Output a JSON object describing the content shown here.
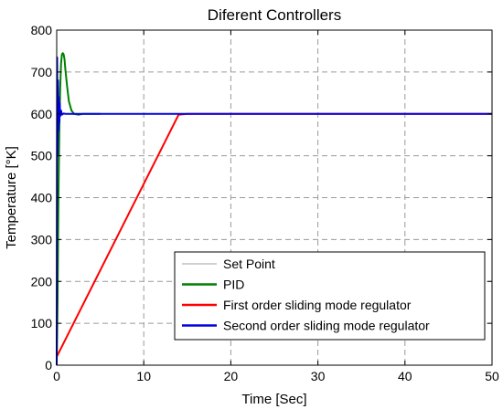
{
  "chart_data": {
    "type": "line",
    "title": "Diferent Controllers",
    "xlabel": "Time [Sec]",
    "ylabel": "Temperature [°K]",
    "xlim": [
      0,
      50
    ],
    "ylim": [
      0,
      800
    ],
    "xticks": [
      0,
      10,
      20,
      30,
      40,
      50
    ],
    "yticks": [
      0,
      100,
      200,
      300,
      400,
      500,
      600,
      700,
      800
    ],
    "grid": true,
    "legend_position": "bottom-right",
    "series": [
      {
        "name": "Set Point",
        "color": "#a0a0a0",
        "x": [
          0,
          50
        ],
        "y": [
          600,
          600
        ]
      },
      {
        "name": "PID",
        "color": "#008000",
        "x": [
          0,
          0.1,
          0.2,
          0.3,
          0.4,
          0.5,
          0.6,
          0.7,
          0.8,
          0.9,
          1.0,
          1.2,
          1.4,
          1.7,
          2.0,
          2.5,
          3.0,
          4.0,
          5.0
        ],
        "y": [
          0,
          150,
          400,
          560,
          660,
          720,
          742,
          745,
          742,
          730,
          705,
          665,
          630,
          608,
          600,
          598,
          600,
          600,
          600
        ]
      },
      {
        "name": "First order sliding mode regulator",
        "color": "#ff0000",
        "x": [
          0,
          14,
          15,
          50
        ],
        "y": [
          20,
          598,
          600,
          600
        ]
      },
      {
        "name": "Second order sliding mode regulator",
        "color": "#0000dd",
        "x": [
          0,
          0.05,
          0.1,
          0.15,
          0.2,
          0.25,
          0.3,
          0.35,
          0.4,
          0.5,
          0.6,
          0.8,
          1.0,
          50
        ],
        "y": [
          0,
          735,
          500,
          680,
          560,
          640,
          580,
          625,
          595,
          608,
          598,
          601,
          600,
          600
        ]
      }
    ]
  }
}
